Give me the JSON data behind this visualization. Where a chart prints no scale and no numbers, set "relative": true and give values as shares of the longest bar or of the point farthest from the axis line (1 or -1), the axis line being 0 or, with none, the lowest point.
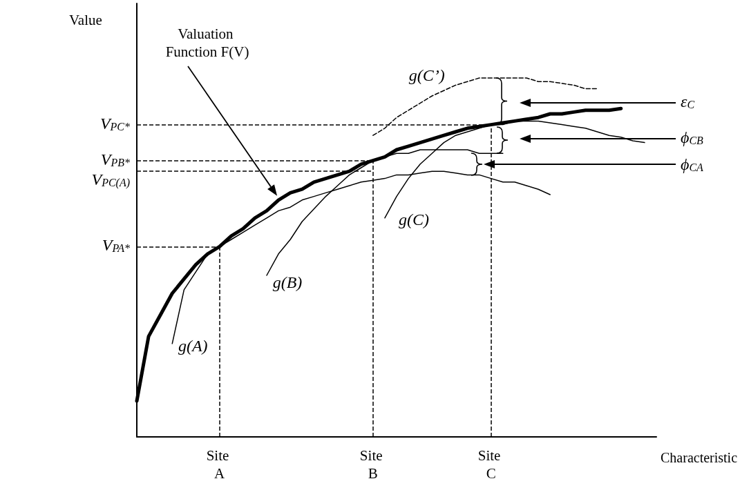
{
  "chart_data": {
    "type": "line",
    "relative": true,
    "xlabel": "Characteristic",
    "ylabel": "Value",
    "marker": "none",
    "line_style": "solid",
    "categories": [
      null,
      null,
      null,
      null,
      null,
      null,
      null,
      "Site A",
      null,
      null,
      null,
      null,
      null,
      null,
      null,
      null,
      null,
      null,
      null,
      null,
      "Site B",
      null,
      null,
      null,
      null,
      null,
      null,
      null,
      null,
      null,
      "Site C",
      null,
      null,
      null,
      null,
      null,
      null,
      null,
      null,
      null,
      null,
      null,
      null,
      null,
      null
    ],
    "series": [
      {
        "color": "#000000",
        "values": [
          0.1,
          0.28,
          0.34,
          0.4,
          0.44,
          0.48,
          0.51,
          0.53,
          0.56,
          0.58,
          0.61,
          0.63,
          0.66,
          0.68,
          0.69,
          0.71,
          0.72,
          0.73,
          0.74,
          0.76,
          0.77,
          0.78,
          0.8,
          0.81,
          0.82,
          0.83,
          0.84,
          0.85,
          0.86,
          0.865,
          0.87,
          0.875,
          0.88,
          0.885,
          0.89,
          0.9,
          0.9,
          0.905,
          0.91,
          0.91,
          0.91,
          0.915,
          null,
          null,
          null
        ]
      },
      {
        "name": "g(A)",
        "color": "#000000",
        "values": [
          null,
          null,
          null,
          0.26,
          0.41,
          0.46,
          0.51,
          0.53,
          0.55,
          0.57,
          0.59,
          0.61,
          0.63,
          0.64,
          0.66,
          0.67,
          0.68,
          0.69,
          0.7,
          0.71,
          0.715,
          0.72,
          0.73,
          0.73,
          0.735,
          0.74,
          0.74,
          0.735,
          0.73,
          0.73,
          0.72,
          0.71,
          0.71,
          0.7,
          0.69,
          0.675,
          null,
          null,
          null,
          null,
          null,
          null,
          null,
          null,
          null
        ]
      },
      {
        "name": "g(B)",
        "color": "#000000",
        "values": [
          null,
          null,
          null,
          null,
          null,
          null,
          null,
          null,
          null,
          null,
          null,
          0.45,
          0.51,
          0.55,
          0.6,
          0.635,
          0.67,
          0.7,
          0.73,
          0.75,
          0.77,
          0.78,
          0.79,
          0.79,
          0.8,
          0.8,
          0.8,
          0.8,
          0.8,
          0.79,
          0.79,
          0.79,
          null,
          null,
          null,
          null,
          null,
          null,
          null,
          null,
          null,
          null,
          null,
          null,
          null
        ]
      },
      {
        "name": "g(C)",
        "color": "#000000",
        "values": [
          null,
          null,
          null,
          null,
          null,
          null,
          null,
          null,
          null,
          null,
          null,
          null,
          null,
          null,
          null,
          null,
          null,
          null,
          null,
          null,
          null,
          0.61,
          0.67,
          0.72,
          0.76,
          0.79,
          0.82,
          0.84,
          0.85,
          0.86,
          0.87,
          0.87,
          0.88,
          0.88,
          0.88,
          0.875,
          0.87,
          0.865,
          0.86,
          0.85,
          0.84,
          0.835,
          0.825,
          0.82,
          null
        ]
      },
      {
        "name": "g(C’)",
        "color": "#000000",
        "line_style": "dashed",
        "values": [
          null,
          null,
          null,
          null,
          null,
          null,
          null,
          null,
          null,
          null,
          null,
          null,
          null,
          null,
          null,
          null,
          null,
          null,
          null,
          null,
          0.84,
          0.86,
          0.89,
          0.91,
          0.93,
          0.95,
          0.965,
          0.98,
          0.99,
          1.0,
          1.0,
          1.0,
          1.0,
          1.0,
          0.99,
          0.99,
          0.985,
          0.98,
          0.97,
          0.97,
          null,
          null,
          null,
          null,
          null
        ]
      }
    ],
    "ref_lines": [
      {
        "axis": "y",
        "value": 0.87,
        "label": "V$_{PC*}$",
        "color": "#000000",
        "line_style": "dashed"
      },
      {
        "axis": "y",
        "value": 0.77,
        "label": "V$_{PB*}$",
        "color": "#000000",
        "line_style": "dashed"
      },
      {
        "axis": "y",
        "value": 0.74,
        "label": "V$_{PC(A)}$",
        "color": "#000000",
        "line_style": "dashed"
      },
      {
        "axis": "y",
        "value": 0.53,
        "label": "V$_{PA*}$",
        "color": "#000000",
        "line_style": "dashed"
      },
      {
        "axis": "x",
        "value": "Site A",
        "color": "#000000",
        "line_style": "dashed"
      },
      {
        "axis": "x",
        "value": "Site B",
        "color": "#000000",
        "line_style": "dashed"
      },
      {
        "axis": "x",
        "value": "Site C",
        "color": "#000000",
        "line_style": "dashed"
      }
    ],
    "annotations": [
      "Valuation Function F(V)",
      "ε$_{C}$",
      "ϕ$_{CB}$",
      "ϕ$_{CA}$"
    ]
  }
}
